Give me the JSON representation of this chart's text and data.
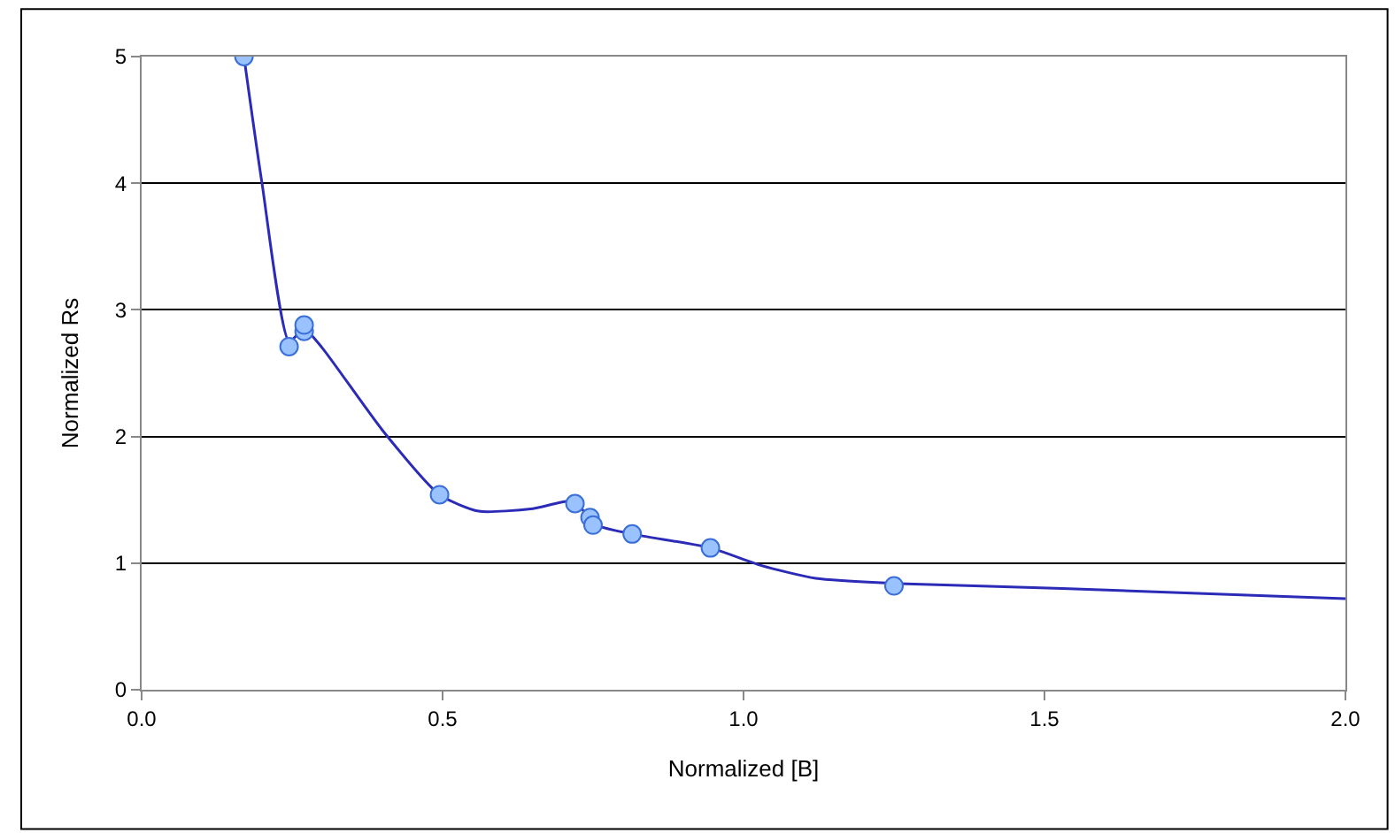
{
  "chart_data": {
    "type": "scatter",
    "xlabel": "Normalized [B]",
    "ylabel": "Normalized Rs",
    "xlim": [
      0,
      2
    ],
    "xticks": [
      {
        "value": 0,
        "label": "0.0"
      },
      0.5,
      {
        "value": 1,
        "label": "1.0"
      },
      1.5,
      {
        "value": 2,
        "label": "2.0"
      }
    ],
    "ylim": [
      0,
      5
    ],
    "yticks": [
      0,
      1,
      2,
      3,
      4,
      5
    ],
    "grid": "y",
    "legend": false,
    "series": [
      {
        "type": "line",
        "color": "#2b2bb8",
        "marker": "none",
        "line_style": "solid",
        "x": [
          0.17,
          0.2,
          0.245,
          0.27,
          0.3,
          0.4,
          0.495,
          0.56,
          0.65,
          0.72,
          0.75,
          0.815,
          0.945,
          1.03,
          1.12,
          1.25,
          1.53,
          2.0
        ],
        "values": [
          5.0,
          4.0,
          2.75,
          2.85,
          2.7,
          2.05,
          1.54,
          1.41,
          1.43,
          1.49,
          1.31,
          1.23,
          1.12,
          0.98,
          0.88,
          0.84,
          0.8,
          0.72
        ]
      },
      {
        "color": "#99c2ff",
        "marker": "circle",
        "x": [
          0.17,
          0.245,
          0.27,
          0.27,
          0.495,
          0.72,
          0.745,
          0.75,
          0.815,
          0.945,
          1.25
        ],
        "values": [
          5.0,
          2.71,
          2.83,
          2.88,
          1.54,
          1.47,
          1.36,
          1.3,
          1.23,
          1.12,
          0.82
        ]
      }
    ]
  }
}
